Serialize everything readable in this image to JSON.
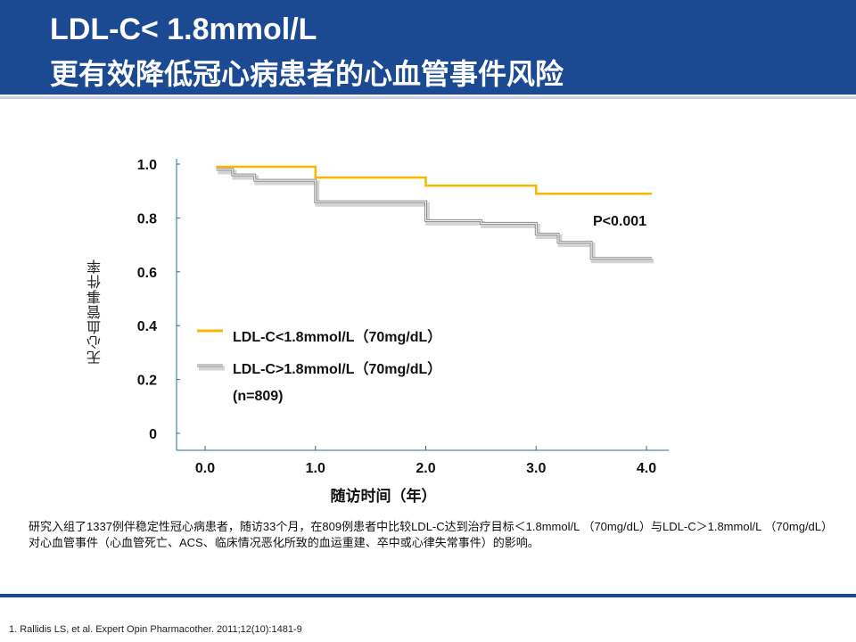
{
  "header": {
    "title_line1": "LDL-C< 1.8mmol/L",
    "title_line2": "更有效降低冠心病患者的心血管事件风险"
  },
  "chart_data": {
    "type": "line",
    "xlabel": "随访时间（年）",
    "ylabel": "无心血管事件率",
    "x_ticks": [
      "0.0",
      "1.0",
      "2.0",
      "3.0",
      "4.0"
    ],
    "y_ticks": [
      "0",
      "0.2",
      "0.4",
      "0.6",
      "0.8",
      "1.0"
    ],
    "xlim": [
      0,
      4
    ],
    "ylim": [
      0,
      1
    ],
    "annotation": "P<0.001",
    "series": [
      {
        "name": "LDL-C<1.8mmol/L（70mg/dL）",
        "color": "#f5b800",
        "points": [
          [
            0.1,
            0.99
          ],
          [
            1.0,
            0.99
          ],
          [
            1.0,
            0.95
          ],
          [
            2.0,
            0.95
          ],
          [
            2.0,
            0.92
          ],
          [
            3.0,
            0.92
          ],
          [
            3.0,
            0.89
          ],
          [
            4.05,
            0.89
          ]
        ]
      },
      {
        "name": "LDL-C>1.8mmol/L（70mg/dL）",
        "name_line2": "(n=809)",
        "color": "#8c8c8c",
        "points": [
          [
            0.1,
            0.98
          ],
          [
            0.25,
            0.98
          ],
          [
            0.25,
            0.96
          ],
          [
            0.45,
            0.96
          ],
          [
            0.45,
            0.94
          ],
          [
            1.0,
            0.94
          ],
          [
            1.0,
            0.86
          ],
          [
            2.0,
            0.86
          ],
          [
            2.0,
            0.79
          ],
          [
            2.5,
            0.79
          ],
          [
            2.5,
            0.78
          ],
          [
            3.0,
            0.78
          ],
          [
            3.0,
            0.74
          ],
          [
            3.2,
            0.74
          ],
          [
            3.2,
            0.71
          ],
          [
            3.5,
            0.71
          ],
          [
            3.5,
            0.65
          ],
          [
            4.05,
            0.65
          ]
        ]
      }
    ]
  },
  "description": "研究入组了1337例伴稳定性冠心病患者，随访33个月，在809例患者中比较LDL-C达到治疗目标＜1.8mmol/L （70mg/dL）与LDL-C＞1.8mmol/L （70mg/dL）对心血管事件（心血管死亡、ACS、临床情况恶化所致的血运重建、卒中或心律失常事件）的影响。",
  "reference": "1. Rallidis LS, et al. Expert Opin Pharmacother. 2011;12(10):1481-9"
}
